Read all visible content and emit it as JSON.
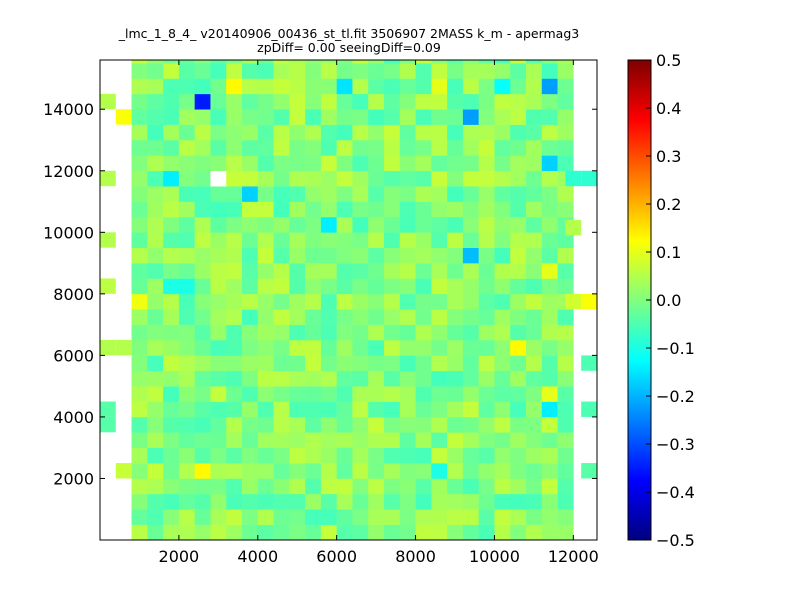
{
  "chart_data": {
    "type": "heatmap",
    "title_line1": "_lmc_1_8_4_ v20140906_00436_st_tl.fit 3506907 2MASS k_m - apermag3",
    "title_line2": "zpDiff= 0.00 seeingDiff=0.09",
    "xlabel": "",
    "ylabel": "",
    "xlim": [
      0,
      12600
    ],
    "ylim": [
      0,
      15600
    ],
    "x_ticks": [
      2000,
      4000,
      6000,
      8000,
      10000,
      12000
    ],
    "x_tick_labels": [
      "2000",
      "4000",
      "6000",
      "8000",
      "10000",
      "12000"
    ],
    "y_ticks": [
      2000,
      4000,
      6000,
      8000,
      10000,
      12000,
      14000
    ],
    "y_tick_labels": [
      "2000",
      "4000",
      "6000",
      "8000",
      "10000",
      "12000",
      "14000"
    ],
    "colorbar": {
      "min": -0.5,
      "max": 0.5,
      "colormap": "jet",
      "ticks": [
        -0.5,
        -0.4,
        -0.3,
        -0.2,
        -0.1,
        0.0,
        0.1,
        0.2,
        0.3,
        0.4,
        0.5
      ],
      "tick_labels": [
        "−0.5",
        "−0.4",
        "−0.3",
        "−0.2",
        "−0.1",
        "0.0",
        "0.1",
        "0.2",
        "0.3",
        "0.4",
        "0.5"
      ]
    },
    "grid": false,
    "cell_width": 400,
    "cell_height": 500,
    "core_region": {
      "x0": 800,
      "x1": 11800,
      "y0": 0,
      "y1": 15600
    },
    "outliers": [
      {
        "x": 2600,
        "y": 14000,
        "value": -0.35
      },
      {
        "x": 3400,
        "y": 14800,
        "value": 0.13
      },
      {
        "x": 6200,
        "y": 14500,
        "value": -0.15
      },
      {
        "x": 8600,
        "y": 14800,
        "value": 0.1
      },
      {
        "x": 10000,
        "y": 14500,
        "value": -0.12
      },
      {
        "x": 11400,
        "y": 14800,
        "value": -0.22
      },
      {
        "x": 9200,
        "y": 13500,
        "value": -0.22
      },
      {
        "x": 11400,
        "y": 12000,
        "value": -0.17
      },
      {
        "x": 1600,
        "y": 11500,
        "value": -0.14
      },
      {
        "x": 3000,
        "y": 11500,
        "value": null
      },
      {
        "x": 3600,
        "y": 11000,
        "value": -0.17
      },
      {
        "x": 5800,
        "y": 10000,
        "value": -0.14
      },
      {
        "x": 9200,
        "y": 9000,
        "value": -0.19
      },
      {
        "x": 10600,
        "y": 9500,
        "value": 0.05
      },
      {
        "x": 11200,
        "y": 8500,
        "value": 0.1
      },
      {
        "x": 1800,
        "y": 8000,
        "value": -0.1
      },
      {
        "x": 2200,
        "y": 8000,
        "value": -0.1
      },
      {
        "x": 10400,
        "y": 6000,
        "value": 0.13
      },
      {
        "x": 11400,
        "y": 4500,
        "value": 0.1
      },
      {
        "x": 11400,
        "y": 4000,
        "value": -0.14
      },
      {
        "x": 2400,
        "y": 2000,
        "value": 0.13
      },
      {
        "x": 8600,
        "y": 2000,
        "value": -0.1
      },
      {
        "x": 1000,
        "y": 7500,
        "value": 0.11
      }
    ],
    "edge_cells": [
      {
        "x": 0,
        "y": 14000,
        "value": 0.05
      },
      {
        "x": 400,
        "y": 13500,
        "value": 0.12
      },
      {
        "x": 0,
        "y": 11500,
        "value": 0.05
      },
      {
        "x": 0,
        "y": 9500,
        "value": 0.05
      },
      {
        "x": 0,
        "y": 8000,
        "value": 0.06
      },
      {
        "x": 0,
        "y": 6000,
        "value": 0.05
      },
      {
        "x": 400,
        "y": 6000,
        "value": 0.05
      },
      {
        "x": 0,
        "y": 4000,
        "value": -0.04
      },
      {
        "x": 0,
        "y": 3500,
        "value": -0.04
      },
      {
        "x": 400,
        "y": 2000,
        "value": 0.07
      },
      {
        "x": 11800,
        "y": 11500,
        "value": -0.08
      },
      {
        "x": 12200,
        "y": 11500,
        "value": -0.08
      },
      {
        "x": 11800,
        "y": 9900,
        "value": 0.05
      },
      {
        "x": 11800,
        "y": 7500,
        "value": 0.08
      },
      {
        "x": 12200,
        "y": 7500,
        "value": 0.12
      },
      {
        "x": 12200,
        "y": 5500,
        "value": -0.05
      },
      {
        "x": 12200,
        "y": 4000,
        "value": -0.05
      },
      {
        "x": 12200,
        "y": 2000,
        "value": -0.04
      }
    ]
  }
}
